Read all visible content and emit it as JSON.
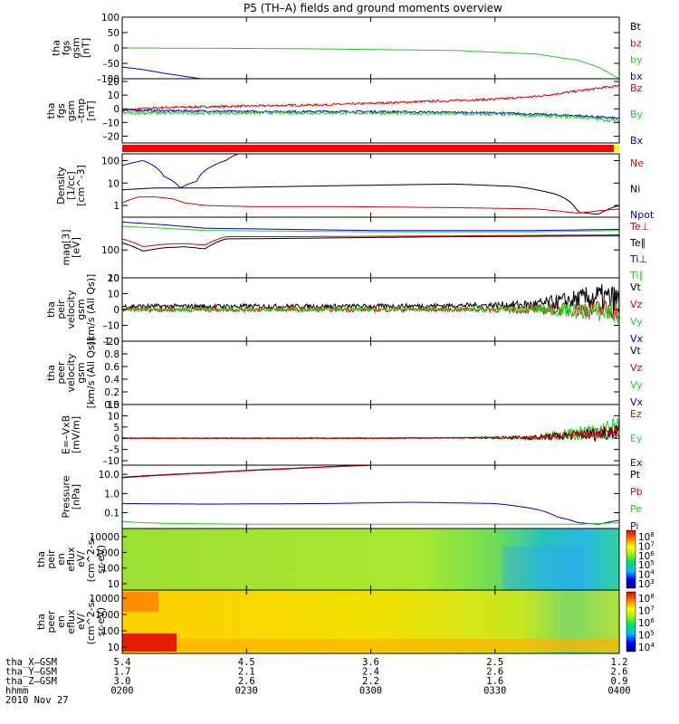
{
  "title": "P5 (TH–A) fields and ground moments overview",
  "date_label": "2010 Nov 27",
  "colors": {
    "black": "#000000",
    "red": "#dd0000",
    "green": "#22cc22",
    "blue": "#0000cc"
  },
  "chart_data": [
    {
      "id": "fgs_gse",
      "type": "line",
      "ylabel": [
        "tha",
        "fgs",
        "gsm",
        "[nT]"
      ],
      "ylim": [
        -100,
        100
      ],
      "yticks": [
        "100",
        "50",
        "0",
        "–50",
        "–100"
      ],
      "ytick_values": [
        100,
        50,
        0,
        -50,
        -100
      ],
      "legend": [
        {
          "name": "Bt",
          "color": "black"
        },
        {
          "name": "bz",
          "color": "red"
        },
        {
          "name": "by",
          "color": "green"
        },
        {
          "name": "bx",
          "color": "blue"
        }
      ],
      "series": [
        {
          "name": "by",
          "color": "green",
          "x": [
            0,
            40,
            80,
            100,
            110,
            115,
            120
          ],
          "values": [
            0,
            -2,
            -8,
            -20,
            -40,
            -62,
            -100
          ]
        },
        {
          "name": "bx",
          "color": "blue",
          "x": [
            0,
            5,
            10,
            15,
            20
          ],
          "values": [
            -62,
            -70,
            -82,
            -92,
            -102
          ]
        }
      ]
    },
    {
      "id": "fgs_gse2",
      "type": "line",
      "ylabel": [
        "tha",
        "fgs",
        "gsm",
        "–tmp",
        "[nT]"
      ],
      "ylim": [
        -25,
        22
      ],
      "yticks": [
        "20",
        "10",
        "0",
        "–10",
        "–20"
      ],
      "ytick_values": [
        20,
        10,
        0,
        -10,
        -20
      ],
      "legend": [
        {
          "name": "Bz",
          "color": "red"
        },
        {
          "name": "By",
          "color": "green"
        },
        {
          "name": "Bx",
          "color": "blue"
        }
      ],
      "series": [
        {
          "name": "Bz",
          "color": "red",
          "noise": 0.8,
          "x": [
            0,
            10,
            30,
            50,
            70,
            90,
            100,
            110,
            120
          ],
          "values": [
            -1,
            1,
            2,
            3,
            5,
            7,
            9,
            13,
            17
          ]
        },
        {
          "name": "Bx",
          "color": "blue",
          "noise": 0.8,
          "x": [
            0,
            30,
            60,
            90,
            110,
            120
          ],
          "values": [
            -1,
            -2,
            -2,
            -3,
            -5,
            -7
          ]
        },
        {
          "name": "By",
          "color": "green",
          "noise": 1.2,
          "x": [
            0,
            30,
            60,
            90,
            110,
            120
          ],
          "values": [
            -3,
            -3,
            -3,
            -4,
            -6,
            -9
          ]
        }
      ]
    },
    {
      "id": "mode_bar",
      "type": "bar",
      "color": "#ff0000",
      "end_color": "#ffff00"
    },
    {
      "id": "density",
      "type": "line",
      "log": true,
      "ylabel": [
        "Density",
        "[1/cc]",
        "[cm^-3]"
      ],
      "ylim": [
        0.3,
        200
      ],
      "yticks": [
        "100",
        "10",
        "1"
      ],
      "ytick_values": [
        100,
        10,
        1
      ],
      "legend": [
        {
          "name": "Ne",
          "color": "red"
        },
        {
          "name": "Ni",
          "color": "black"
        },
        {
          "name": "Npot",
          "color": "blue"
        }
      ],
      "series": [
        {
          "name": "Ni",
          "color": "black",
          "x": [
            0,
            8,
            20,
            40,
            60,
            80,
            95,
            105,
            110,
            115,
            120
          ],
          "values": [
            5,
            6,
            6,
            7,
            8,
            9,
            7,
            3,
            0.5,
            0.4,
            1
          ]
        },
        {
          "name": "Ne",
          "color": "red",
          "x": [
            0,
            4,
            8,
            12,
            15,
            20,
            30,
            50,
            80,
            100,
            110,
            120
          ],
          "values": [
            1.3,
            2.4,
            2.4,
            2,
            1.3,
            1,
            0.9,
            0.9,
            0.8,
            0.7,
            0.45,
            0.7
          ]
        },
        {
          "name": "Npot",
          "color": "blue",
          "x": [
            0,
            5,
            10,
            14,
            18,
            22,
            25,
            28
          ],
          "values": [
            60,
            100,
            20,
            6,
            12,
            60,
            100,
            200
          ]
        }
      ]
    },
    {
      "id": "temp",
      "type": "line",
      "log": true,
      "ylabel": [
        "mag[3]",
        "[eV]"
      ],
      "ylim": [
        10,
        1500
      ],
      "yticks": [
        "100",
        "10"
      ],
      "ytick_values": [
        100,
        10
      ],
      "legend": [
        {
          "name": "Te⊥",
          "color": "red"
        },
        {
          "name": "Te∥",
          "color": "black"
        },
        {
          "name": "Ti⊥",
          "color": "blue"
        },
        {
          "name": "Ti∥",
          "color": "green"
        }
      ],
      "series": [
        {
          "name": "Ti⊥",
          "color": "blue",
          "x": [
            0,
            20,
            60,
            100,
            120
          ],
          "values": [
            1000,
            600,
            500,
            500,
            550
          ]
        },
        {
          "name": "Ti∥",
          "color": "green",
          "x": [
            0,
            20,
            60,
            100,
            120
          ],
          "values": [
            700,
            500,
            450,
            450,
            500
          ]
        },
        {
          "name": "Te⊥",
          "color": "red",
          "x": [
            0,
            5,
            10,
            15,
            20,
            25,
            40,
            80,
            120
          ],
          "values": [
            250,
            130,
            160,
            170,
            150,
            300,
            300,
            320,
            350
          ]
        },
        {
          "name": "Te∥",
          "color": "black",
          "x": [
            0,
            5,
            10,
            15,
            20,
            25,
            40,
            80,
            120
          ],
          "values": [
            180,
            90,
            120,
            130,
            110,
            250,
            260,
            300,
            320
          ]
        }
      ]
    },
    {
      "id": "vel_peir",
      "type": "line",
      "ylabel": [
        "tha",
        "peir",
        "velocity",
        "gsm",
        "[km/s (All Qs)]"
      ],
      "ylim": [
        -20,
        20
      ],
      "yticks": [
        "20",
        "10",
        "0",
        "–10",
        "–20"
      ],
      "ytick_values": [
        20,
        10,
        0,
        -10,
        -20
      ],
      "legend": [
        {
          "name": "Vt",
          "color": "black"
        },
        {
          "name": "Vz",
          "color": "red"
        },
        {
          "name": "Vy",
          "color": "green"
        },
        {
          "name": "Vx",
          "color": "blue"
        }
      ],
      "series": [
        {
          "name": "Vt",
          "color": "black",
          "noise": 1.5,
          "growth": 9,
          "x": [
            0,
            60,
            100,
            115,
            120
          ],
          "values": [
            2,
            2,
            3,
            8,
            5
          ]
        },
        {
          "name": "Vz",
          "color": "red",
          "noise": 1.5,
          "growth": 6,
          "x": [
            0,
            60,
            100,
            120
          ],
          "values": [
            0,
            0,
            0,
            0
          ]
        },
        {
          "name": "Vy",
          "color": "green",
          "noise": 1.2,
          "growth": 7,
          "x": [
            0,
            60,
            100,
            120
          ],
          "values": [
            0,
            0,
            0,
            -2
          ]
        }
      ]
    },
    {
      "id": "vel_peer",
      "type": "line",
      "ylabel": [
        "tha",
        "peer",
        "velocity",
        "gsm",
        "[km/s (All Qs)]"
      ],
      "ylim": [
        0,
        1
      ],
      "yticks": [
        "1.0",
        "0.8",
        "0.6",
        "0.4",
        "0.2",
        "0.0"
      ],
      "ytick_values": [
        1,
        0.8,
        0.6,
        0.4,
        0.2,
        0
      ],
      "legend": [
        {
          "name": "Vt",
          "color": "black"
        },
        {
          "name": "Vz",
          "color": "red"
        },
        {
          "name": "Vy",
          "color": "green"
        },
        {
          "name": "Vx",
          "color": "blue"
        }
      ],
      "series": []
    },
    {
      "id": "efield",
      "type": "line",
      "ylabel": [
        "E=–VxB",
        "[mV/m]"
      ],
      "ylim": [
        -12,
        15
      ],
      "yticks": [
        "15",
        "10",
        "5",
        "0",
        "–5",
        "–10"
      ],
      "ytick_values": [
        15,
        10,
        5,
        0,
        -5,
        -10
      ],
      "legend": [
        {
          "name": "Ez",
          "color": "red"
        },
        {
          "name": "Ey",
          "color": "green"
        },
        {
          "name": "Ex",
          "color": "blue"
        }
      ],
      "series": [
        {
          "name": "Ey",
          "color": "green",
          "noise": 0.2,
          "growth": 5,
          "x": [
            0,
            60,
            100,
            115,
            120
          ],
          "values": [
            0,
            0,
            0.5,
            3,
            5
          ]
        },
        {
          "name": "Ex",
          "color": "black",
          "noise": 0.2,
          "growth": 4,
          "x": [
            0,
            60,
            100,
            115,
            120
          ],
          "values": [
            0,
            0,
            0.3,
            2,
            4
          ]
        },
        {
          "name": "Ez",
          "color": "red",
          "noise": 0.2,
          "growth": 3,
          "x": [
            0,
            60,
            100,
            115,
            120
          ],
          "values": [
            0,
            0,
            0.3,
            2,
            3
          ]
        }
      ]
    },
    {
      "id": "pressure",
      "type": "line",
      "log": true,
      "ylabel": [
        "Pressure",
        "[nPa]"
      ],
      "ylim": [
        0.015,
        30
      ],
      "yticks": [
        "10.0",
        "1.0",
        "0.1"
      ],
      "ytick_values": [
        10,
        1,
        0.1
      ],
      "legend": [
        {
          "name": "Pt",
          "color": "black"
        },
        {
          "name": "Pb",
          "color": "red"
        },
        {
          "name": "Pe",
          "color": "green"
        },
        {
          "name": "Pi",
          "color": "blue"
        }
      ],
      "series": [
        {
          "name": "Pt",
          "color": "black",
          "x": [
            0,
            20,
            40,
            60
          ],
          "values": [
            7,
            12,
            20,
            30
          ]
        },
        {
          "name": "Pb",
          "color": "red",
          "x": [
            0,
            20,
            40,
            60
          ],
          "values": [
            6.5,
            11.5,
            19,
            29
          ]
        },
        {
          "name": "Pi",
          "color": "blue",
          "x": [
            0,
            20,
            50,
            70,
            90,
            100,
            105,
            110,
            115,
            120
          ],
          "values": [
            0.3,
            0.28,
            0.3,
            0.35,
            0.3,
            0.15,
            0.06,
            0.03,
            0.025,
            0.04
          ]
        },
        {
          "name": "Pe",
          "color": "green",
          "x": [
            0,
            5,
            10,
            30,
            60,
            90,
            110,
            120
          ],
          "values": [
            0.035,
            0.03,
            0.028,
            0.025,
            0.025,
            0.025,
            0.025,
            0.03
          ]
        }
      ]
    },
    {
      "id": "peir_spec",
      "type": "heatmap",
      "ylabel": [
        "tha",
        "peir",
        "en",
        "eflux",
        "eV/",
        "(cm^2-s-",
        "sr-eV)"
      ],
      "yticks": [
        "10000",
        "1000",
        "100",
        "10"
      ],
      "cbar_ticks": [
        "10^8",
        "10^7",
        "10^6",
        "10^5",
        "10^4",
        "10^3"
      ]
    },
    {
      "id": "peer_spec",
      "type": "heatmap",
      "ylabel": [
        "tha",
        "peer",
        "en",
        "eflux",
        "eV/",
        "(cm^2-s-",
        "sr-eV)"
      ],
      "yticks": [
        "10000",
        "1000",
        "100",
        "10"
      ],
      "cbar_ticks": [
        "10^8",
        "10^7",
        "10^6",
        "10^5",
        "10^4"
      ]
    }
  ],
  "x_axis": {
    "rows": [
      {
        "label": "tha_X–GSM",
        "values": [
          "5.4",
          "4.5",
          "3.6",
          "2.5",
          "1.2"
        ]
      },
      {
        "label": "tha_Y–GSM",
        "values": [
          "1.7",
          "2.1",
          "2.4",
          "2.6",
          "2.6"
        ]
      },
      {
        "label": "tha_Z–GSM",
        "values": [
          "3.0",
          "2.6",
          "2.2",
          "1.6",
          "0.9"
        ]
      },
      {
        "label": "hhmm",
        "values": [
          "0200",
          "0230",
          "0300",
          "0330",
          "0400"
        ]
      }
    ],
    "range_minutes": [
      0,
      120
    ]
  }
}
